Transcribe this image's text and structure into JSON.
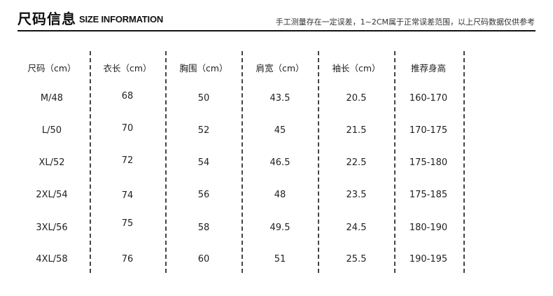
{
  "header": {
    "title_cn": "尺码信息",
    "title_en": "SIZE INFORMATION",
    "note": "手工测量存在一定误差，1~2CM属于正常误差范围，以上尺码数据仅供参考"
  },
  "table": {
    "columns": [
      "尺码（cm）",
      "衣长（cm）",
      "胸围（cm）",
      "肩宽（cm）",
      "袖长（cm）",
      "推荐身高"
    ],
    "rows": [
      [
        "M/48",
        "68",
        "50",
        "43.5",
        "20.5",
        "160-170"
      ],
      [
        "L/50",
        "70",
        "52",
        "45",
        "21.5",
        "170-175"
      ],
      [
        "XL/52",
        "72",
        "54",
        "46.5",
        "22.5",
        "175-180"
      ],
      [
        "2XL/54",
        "74",
        "56",
        "48",
        "23.5",
        "175-185"
      ],
      [
        "3XL/56",
        "75",
        "58",
        "49.5",
        "24.5",
        "180-190"
      ],
      [
        "4XL/58",
        "76",
        "60",
        "51",
        "25.5",
        "190-195"
      ]
    ]
  }
}
